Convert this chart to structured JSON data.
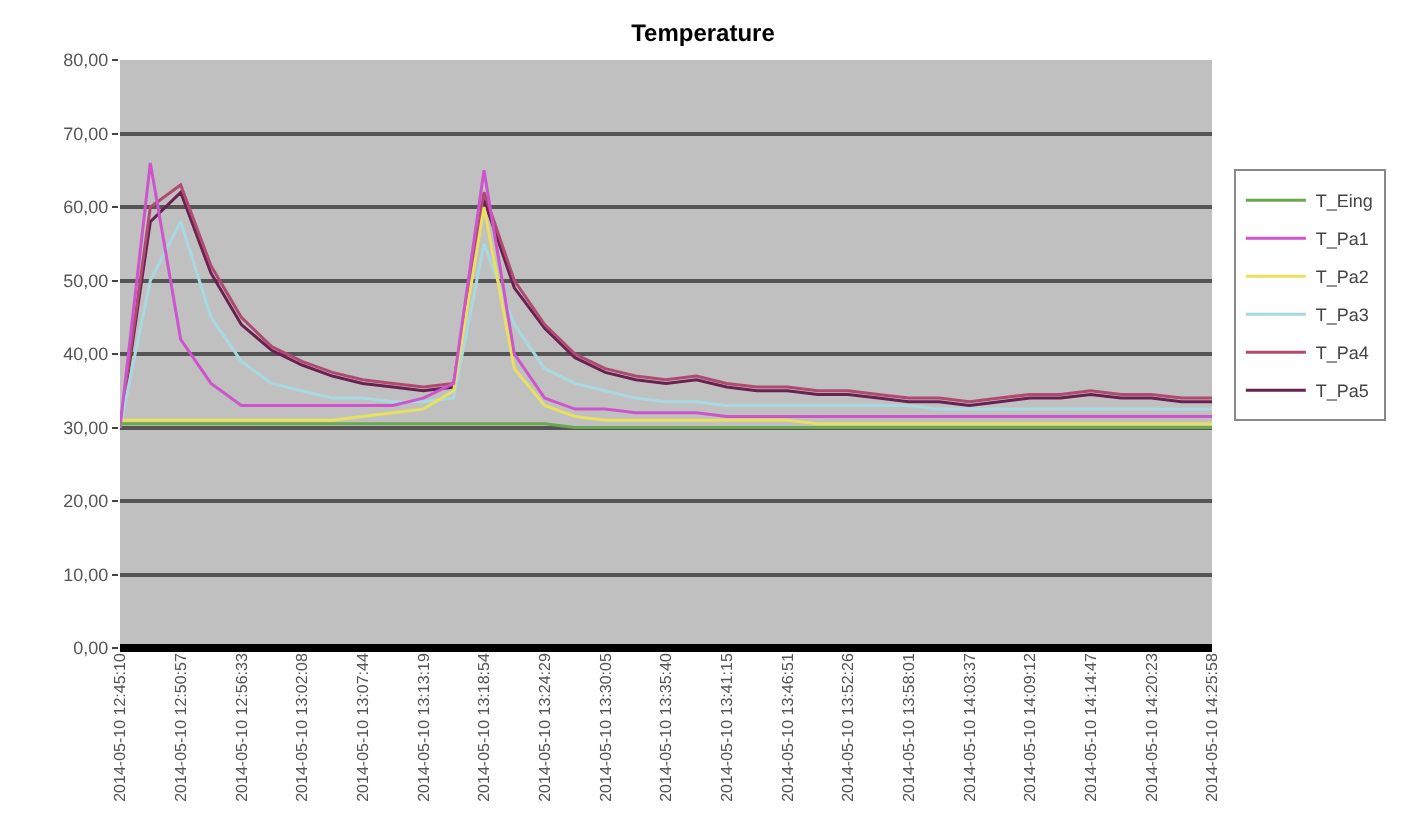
{
  "chart_data": {
    "type": "line",
    "title": "Temperature",
    "categories": [
      "2014-05-10 12:45:10",
      null,
      "2014-05-10 12:50:57",
      null,
      "2014-05-10 12:56:33",
      null,
      "2014-05-10 13:02:08",
      null,
      "2014-05-10 13:07:44",
      null,
      "2014-05-10 13:13:19",
      null,
      "2014-05-10 13:18:54",
      null,
      "2014-05-10 13:24:29",
      null,
      "2014-05-10 13:30:05",
      null,
      "2014-05-10 13:35:40",
      null,
      "2014-05-10 13:41:15",
      null,
      "2014-05-10 13:46:51",
      null,
      "2014-05-10 13:52:26",
      null,
      "2014-05-10 13:58:01",
      null,
      "2014-05-10 14:03:37",
      null,
      "2014-05-10 14:09:12",
      null,
      "2014-05-10 14:14:47",
      null,
      "2014-05-10 14:20:23",
      null,
      "2014-05-10 14:25:58"
    ],
    "series": [
      {
        "name": "T_Eing",
        "color": "#6aa84f",
        "values": [
          30.5,
          30.5,
          30.5,
          30.5,
          30.5,
          30.5,
          30.5,
          30.5,
          30.5,
          30.5,
          30.5,
          30.5,
          30.5,
          30.5,
          30.5,
          30,
          30,
          30,
          30,
          30,
          30,
          30,
          30,
          30,
          30,
          30,
          30,
          30,
          30,
          30,
          30,
          30,
          30,
          30,
          30,
          30,
          30
        ]
      },
      {
        "name": "T_Pa1",
        "color": "#cc55cc",
        "values": [
          30,
          66,
          42,
          36,
          33,
          33,
          33,
          33,
          33,
          33,
          34,
          36,
          65,
          40,
          34,
          32.5,
          32.5,
          32,
          32,
          32,
          31.5,
          31.5,
          31.5,
          31.5,
          31.5,
          31.5,
          31.5,
          31.5,
          31.5,
          31.5,
          31.5,
          31.5,
          31.5,
          31.5,
          31.5,
          31.5,
          31.5
        ]
      },
      {
        "name": "T_Pa2",
        "color": "#e8e060",
        "values": [
          31,
          31,
          31,
          31,
          31,
          31,
          31,
          31,
          31.5,
          32,
          32.5,
          35,
          60,
          38,
          33,
          31.5,
          31,
          31,
          31,
          31,
          31,
          31,
          31,
          30.5,
          30.5,
          30.5,
          30.5,
          30.5,
          30.5,
          30.5,
          30.5,
          30.5,
          30.5,
          30.5,
          30.5,
          30.5,
          30.5
        ]
      },
      {
        "name": "T_Pa3",
        "color": "#a8d8e0",
        "values": [
          30,
          50,
          58,
          45,
          39,
          36,
          35,
          34,
          34,
          33.5,
          33.5,
          34,
          55,
          44,
          38,
          36,
          35,
          34,
          33.5,
          33.5,
          33,
          33,
          33,
          33,
          33,
          33,
          33,
          32.5,
          32.5,
          32.5,
          32.5,
          32.5,
          32.5,
          32.5,
          32.5,
          32.5,
          32.5
        ]
      },
      {
        "name": "T_Pa4",
        "color": "#b04a70",
        "values": [
          30,
          60,
          63,
          52,
          45,
          41,
          39,
          37.5,
          36.5,
          36,
          35.5,
          36,
          62,
          50,
          44,
          40,
          38,
          37,
          36.5,
          37,
          36,
          35.5,
          35.5,
          35,
          35,
          34.5,
          34,
          34,
          33.5,
          34,
          34.5,
          34.5,
          35,
          34.5,
          34.5,
          34,
          34
        ]
      },
      {
        "name": "T_Pa5",
        "color": "#6a2050",
        "values": [
          30,
          58,
          62,
          51,
          44,
          40.5,
          38.5,
          37,
          36,
          35.5,
          35,
          35.5,
          61,
          49,
          43.5,
          39.5,
          37.5,
          36.5,
          36,
          36.5,
          35.5,
          35,
          35,
          34.5,
          34.5,
          34,
          33.5,
          33.5,
          33,
          33.5,
          34,
          34,
          34.5,
          34,
          34,
          33.5,
          33.5
        ]
      }
    ],
    "ylim": [
      0,
      80
    ],
    "yticks": [
      {
        "value": 0,
        "label": "0,00"
      },
      {
        "value": 10,
        "label": "10,00"
      },
      {
        "value": 20,
        "label": "20,00"
      },
      {
        "value": 30,
        "label": "30,00"
      },
      {
        "value": 40,
        "label": "40,00"
      },
      {
        "value": 50,
        "label": "50,00"
      },
      {
        "value": 60,
        "label": "60,00"
      },
      {
        "value": 70,
        "label": "70,00"
      },
      {
        "value": 80,
        "label": "80,00"
      }
    ],
    "grid": "y",
    "legend": "right",
    "marker": "none",
    "line_style": "solid"
  }
}
